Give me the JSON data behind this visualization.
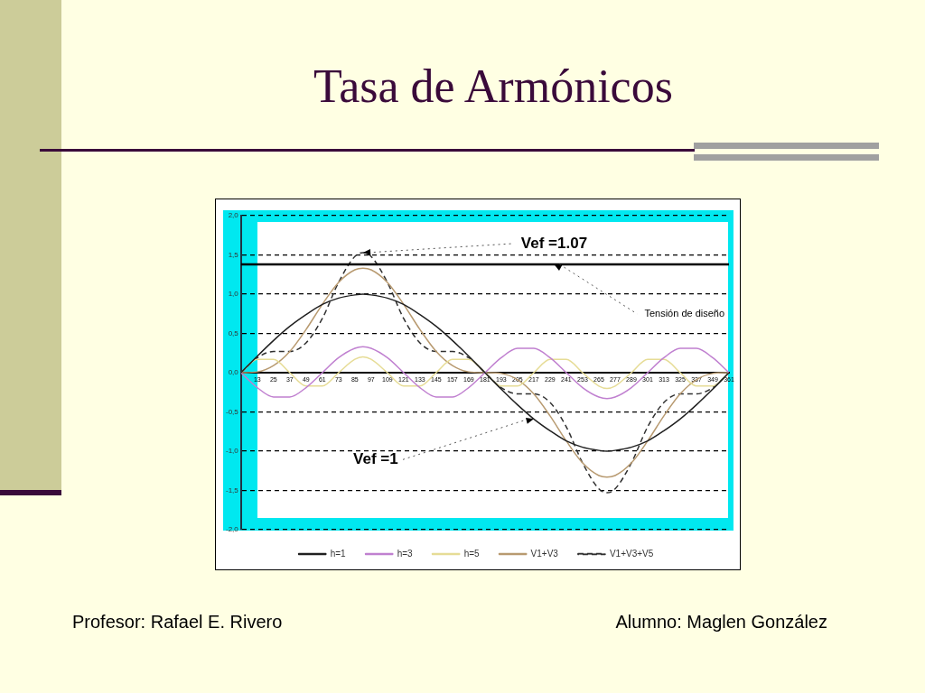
{
  "chart_data": {
    "type": "line",
    "title": "Tasa de Armónicos",
    "x": [
      1,
      13,
      25,
      37,
      49,
      61,
      73,
      85,
      91,
      97,
      109,
      121,
      133,
      145,
      157,
      169,
      181,
      193,
      205,
      217,
      229,
      241,
      253,
      265,
      271,
      277,
      289,
      301,
      313,
      325,
      337,
      349,
      361
    ],
    "series": [
      {
        "name": "h=1",
        "color": "#202020",
        "line_style": "solid",
        "values": [
          0,
          0.21,
          0.41,
          0.59,
          0.74,
          0.87,
          0.95,
          0.99,
          1,
          0.99,
          0.95,
          0.87,
          0.74,
          0.59,
          0.41,
          0.21,
          0,
          -0.21,
          -0.41,
          -0.59,
          -0.74,
          -0.87,
          -0.95,
          -0.99,
          -1,
          -0.99,
          -0.95,
          -0.87,
          -0.74,
          -0.59,
          -0.41,
          -0.21,
          0
        ]
      },
      {
        "name": "h=3",
        "color": "#c080d0",
        "line_style": "solid",
        "values": [
          0,
          -0.19,
          -0.31,
          -0.31,
          -0.19,
          0,
          0.19,
          0.31,
          0.33,
          0.31,
          0.19,
          0,
          -0.19,
          -0.31,
          -0.31,
          -0.19,
          0,
          0.19,
          0.31,
          0.31,
          0.19,
          0,
          -0.19,
          -0.31,
          -0.33,
          -0.31,
          -0.19,
          0,
          0.19,
          0.31,
          0.31,
          0.19,
          0
        ]
      },
      {
        "name": "h=5",
        "color": "#e6dc96",
        "line_style": "solid",
        "values": [
          0,
          0.17,
          0.17,
          0,
          -0.17,
          -0.17,
          0,
          0.17,
          0.2,
          0.17,
          0,
          -0.17,
          -0.17,
          0,
          0.17,
          0.17,
          0,
          -0.17,
          -0.17,
          0,
          0.17,
          0.17,
          0,
          -0.17,
          -0.2,
          -0.17,
          0,
          0.17,
          0.17,
          0,
          -0.17,
          -0.17,
          0
        ]
      },
      {
        "name": "V1+V3",
        "color": "#b89a70",
        "line_style": "solid",
        "values": [
          0,
          0.01,
          0.09,
          0.27,
          0.55,
          0.87,
          1.15,
          1.31,
          1.33,
          1.31,
          1.15,
          0.87,
          0.55,
          0.27,
          0.09,
          0.01,
          0,
          -0.01,
          -0.09,
          -0.27,
          -0.55,
          -0.87,
          -1.15,
          -1.31,
          -1.33,
          -1.31,
          -1.15,
          -0.87,
          -0.55,
          -0.27,
          -0.09,
          -0.01,
          0
        ]
      },
      {
        "name": "V1+V3+V5",
        "color": "#303030",
        "line_style": "dashed",
        "values": [
          0,
          0.19,
          0.27,
          0.27,
          0.38,
          0.69,
          1.15,
          1.48,
          1.53,
          1.48,
          1.15,
          0.69,
          0.38,
          0.27,
          0.27,
          0.19,
          0,
          -0.19,
          -0.27,
          -0.27,
          -0.38,
          -0.69,
          -1.15,
          -1.48,
          -1.53,
          -1.48,
          -1.15,
          -0.69,
          -0.38,
          -0.27,
          -0.27,
          -0.19,
          0
        ]
      }
    ],
    "xlim": [
      1,
      361
    ],
    "xticks": [
      13,
      25,
      37,
      49,
      61,
      73,
      85,
      97,
      109,
      121,
      133,
      145,
      157,
      169,
      181,
      193,
      205,
      217,
      229,
      241,
      253,
      265,
      277,
      289,
      301,
      313,
      325,
      337,
      349,
      361
    ],
    "ylim": [
      -2,
      2
    ],
    "yticks": [
      {
        "value": -2,
        "label": "-2,0"
      },
      {
        "value": -1.5,
        "label": "-1,5"
      },
      {
        "value": -1,
        "label": "-1,0"
      },
      {
        "value": -0.5,
        "label": "-0,5"
      },
      {
        "value": 0,
        "label": "0,0"
      },
      {
        "value": 0.5,
        "label": "0,5"
      },
      {
        "value": 1,
        "label": "1,0"
      },
      {
        "value": 1.5,
        "label": "1,5"
      },
      {
        "value": 2,
        "label": "2,0"
      }
    ],
    "grid": "y",
    "legend": "bottom",
    "marker": "none",
    "ref_lines": [
      {
        "axis": "y",
        "value": 1.38,
        "color": "#000000"
      }
    ],
    "annotations": [
      {
        "text": "Vef =1.07",
        "x": 91,
        "y": 1.53
      },
      {
        "text": "Tensión de diseño",
        "x": 232,
        "y": 1.38
      },
      {
        "text": "Vef =1",
        "x": 217,
        "y": -0.59
      },
      "Profesor: Rafael E. Rivero",
      "Alumno: Maglen González"
    ]
  }
}
